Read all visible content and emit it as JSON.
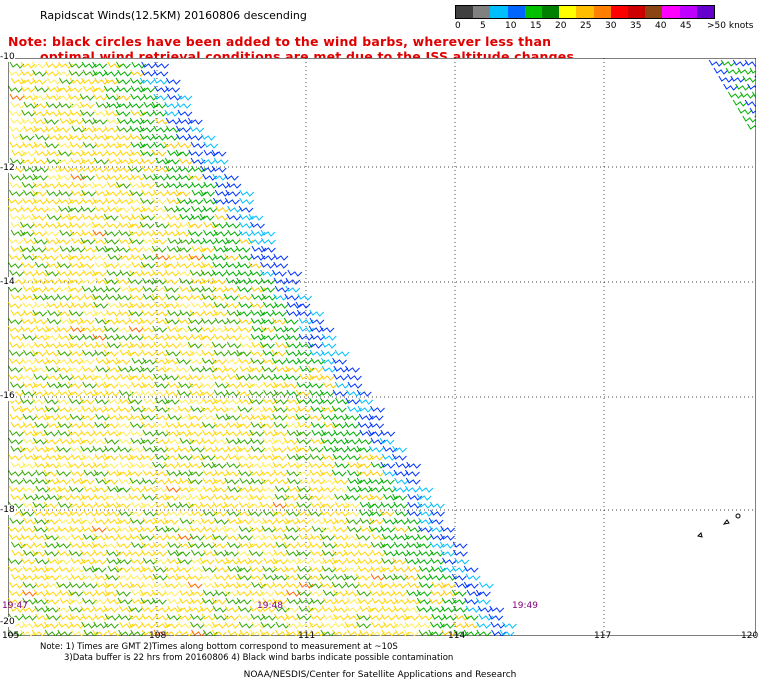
{
  "title": "Rapidscat Winds(12.5KM) 20160806 descending",
  "note_line1": "Note: black circles have been added to the wind barbs, wherever less than",
  "note_line2": "optimal wind retrieval conditions are met due to the ISS altitude changes.",
  "legend": {
    "colors": [
      "#404040",
      "#808080",
      "#00bfff",
      "#0066ff",
      "#00c000",
      "#008000",
      "#ffff00",
      "#ffbf00",
      "#ff8000",
      "#ff0000",
      "#cc0000",
      "#8b4513",
      "#ff00ff",
      "#bf00ff",
      "#6600cc"
    ],
    "labels": [
      "0",
      "5",
      "10",
      "15",
      "20",
      "25",
      "30",
      "35",
      "40",
      "45",
      ">50 knots"
    ]
  },
  "latitudes": [
    "-10",
    "-12",
    "-14",
    "-16",
    "-18",
    "-20"
  ],
  "longitudes": [
    "105",
    "108",
    "111",
    "114",
    "117",
    "120"
  ],
  "times": [
    "19:47",
    "19:48",
    "19:49"
  ],
  "footnote_line1": "Note: 1) Times are GMT 2)Times along bottom correspond to measurement at ~10S",
  "footnote_line2": "3)Data buffer is 22 hrs from 20160806 4) Black wind barbs indicate possible contamination",
  "credit": "NOAA/NESDIS/Center for Satellite Applications and Research"
}
